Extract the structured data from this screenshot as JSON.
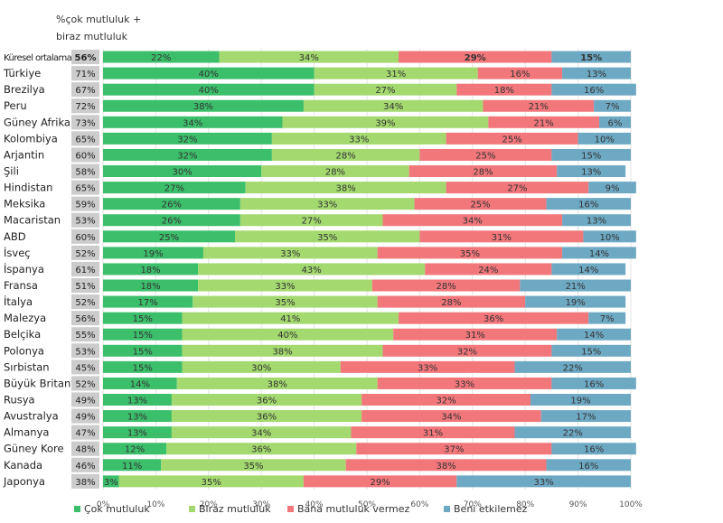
{
  "header": {
    "line1": "%çok mutluluk +",
    "line2": "biraz mutluluk"
  },
  "chart_data": {
    "type": "bar",
    "orientation": "horizontal",
    "stacked": true,
    "xlim": [
      0,
      100
    ],
    "x_ticks": [
      "0%",
      "10%",
      "20%",
      "30%",
      "40%",
      "50%",
      "60%",
      "70%",
      "80%",
      "90%",
      "100%"
    ],
    "grid": true,
    "legend_position": "bottom",
    "colors": [
      "#3cbf6b",
      "#a3d96f",
      "#f2777b",
      "#6ea9c4"
    ],
    "pct_cell_color": "#cccccc",
    "categories": [
      "Küresel ortalama",
      "Türkiye",
      "Brezilya",
      "Peru",
      "Güney Afrika",
      "Kolombiya",
      "Arjantin",
      "Şili",
      "Hindistan",
      "Meksika",
      "Macaristan",
      "ABD",
      "İsveç",
      "İspanya",
      "Fransa",
      "İtalya",
      "Malezya",
      "Belçika",
      "Polonya",
      "Sırbistan",
      "Büyük Britanya",
      "Rusya",
      "Avustralya",
      "Almanya",
      "Güney Kore",
      "Kanada",
      "Japonya"
    ],
    "combined_labels": [
      "56%",
      "71%",
      "67%",
      "72%",
      "73%",
      "65%",
      "60%",
      "58%",
      "65%",
      "59%",
      "53%",
      "60%",
      "52%",
      "61%",
      "51%",
      "52%",
      "56%",
      "55%",
      "53%",
      "45%",
      "52%",
      "49%",
      "49%",
      "47%",
      "48%",
      "46%",
      "38%"
    ],
    "series": [
      {
        "name": "Çok mutluluk",
        "values": [
          22,
          40,
          40,
          38,
          34,
          32,
          32,
          30,
          27,
          26,
          26,
          25,
          19,
          18,
          18,
          17,
          15,
          15,
          15,
          15,
          14,
          13,
          13,
          13,
          12,
          11,
          3
        ]
      },
      {
        "name": "Biraz mutluluk",
        "values": [
          34,
          31,
          27,
          34,
          39,
          33,
          28,
          28,
          38,
          33,
          27,
          35,
          33,
          43,
          33,
          35,
          41,
          40,
          38,
          30,
          38,
          36,
          36,
          34,
          36,
          35,
          35
        ]
      },
      {
        "name": "Bana mutluluk vermez",
        "values": [
          29,
          16,
          18,
          21,
          21,
          25,
          25,
          28,
          27,
          25,
          34,
          31,
          35,
          24,
          28,
          28,
          36,
          31,
          32,
          33,
          33,
          32,
          34,
          31,
          37,
          38,
          29
        ]
      },
      {
        "name": "Beni etkilemez",
        "values": [
          15,
          13,
          16,
          7,
          6,
          10,
          15,
          13,
          9,
          16,
          13,
          10,
          14,
          14,
          21,
          19,
          7,
          14,
          15,
          22,
          16,
          19,
          17,
          22,
          16,
          16,
          33
        ]
      }
    ],
    "value_labels": [
      [
        "22%",
        "40%",
        "40%",
        "38%",
        "34%",
        "32%",
        "32%",
        "30%",
        "27%",
        "26%",
        "26%",
        "25%",
        "19%",
        "18%",
        "18%",
        "17%",
        "15%",
        "15%",
        "15%",
        "15%",
        "14%",
        "13%",
        "13%",
        "13%",
        "12%",
        "11%",
        "3%"
      ],
      [
        "34%",
        "31%",
        "27%",
        "34%",
        "39%",
        "33%",
        "28%",
        "28%",
        "38%",
        "33%",
        "27%",
        "35%",
        "33%",
        "43%",
        "33%",
        "35%",
        "41%",
        "40%",
        "38%",
        "30%",
        "38%",
        "36%",
        "36%",
        "34%",
        "36%",
        "35%",
        "35%"
      ],
      [
        "29%",
        "16%",
        "18%",
        "21%",
        "21%",
        "25%",
        "25%",
        "28%",
        "27%",
        "25%",
        "34%",
        "31%",
        "35%",
        "24%",
        "28%",
        "28%",
        "36%",
        "31%",
        "32%",
        "33%",
        "33%",
        "32%",
        "34%",
        "31%",
        "37%",
        "38%",
        "29%"
      ],
      [
        "15%",
        "13%",
        "16%",
        "7%",
        "6%",
        "10%",
        "15%",
        "13%",
        "9%",
        "16%",
        "13%",
        "10%",
        "14%",
        "14%",
        "21%",
        "19%",
        "7%",
        "14%",
        "15%",
        "22%",
        "16%",
        "19%",
        "17%",
        "22%",
        "16%",
        "16%",
        "33%"
      ]
    ]
  }
}
